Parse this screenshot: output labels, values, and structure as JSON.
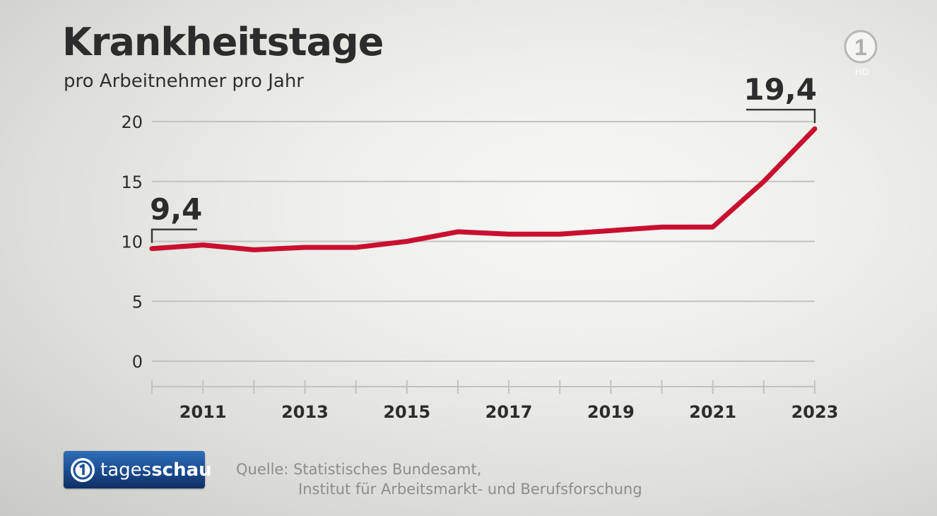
{
  "header": {
    "title": "Krankheitstage",
    "subtitle": "pro Arbeitnehmer pro Jahr"
  },
  "broadcaster": {
    "corner_logo_text": "1",
    "corner_logo_hd": "HD",
    "brand_light": "tages",
    "brand_bold": "schau"
  },
  "source": {
    "line1": "Quelle: Statistisches Bundesamt,",
    "line2": "Institut für Arbeitsmarkt- und Berufsforschung"
  },
  "colors": {
    "line": "#c8102e",
    "text": "#2c2c2c",
    "grid": "#c2c2c0",
    "brand_blue": "#1b4f94"
  },
  "chart_data": {
    "type": "line",
    "title": "Krankheitstage",
    "subtitle": "pro Arbeitnehmer pro Jahr",
    "xlabel": "",
    "ylabel": "",
    "x": [
      2010,
      2011,
      2012,
      2013,
      2014,
      2015,
      2016,
      2017,
      2018,
      2019,
      2020,
      2021,
      2022,
      2023
    ],
    "series": [
      {
        "values": [
          9.4,
          9.7,
          9.3,
          9.5,
          9.5,
          10.0,
          10.8,
          10.6,
          10.6,
          10.9,
          11.2,
          11.2,
          15.0,
          19.4
        ]
      }
    ],
    "xlim": [
      2010,
      2023
    ],
    "ylim": [
      0,
      20
    ],
    "yticks": [
      0,
      5,
      10,
      15,
      20
    ],
    "ytick_labels": [
      "0",
      "5",
      "10",
      "15",
      "20"
    ],
    "xticks_labeled": [
      2011,
      2013,
      2015,
      2017,
      2019,
      2021,
      2023
    ],
    "xtick_labels": [
      "2011",
      "2013",
      "2015",
      "2017",
      "2019",
      "2021",
      "2023"
    ],
    "grid": true,
    "legend": "none",
    "annotations": [
      {
        "x": 2010,
        "y": 9.4,
        "text": "9,4",
        "side": "left"
      },
      {
        "x": 2023,
        "y": 19.4,
        "text": "19,4",
        "side": "right"
      }
    ]
  }
}
